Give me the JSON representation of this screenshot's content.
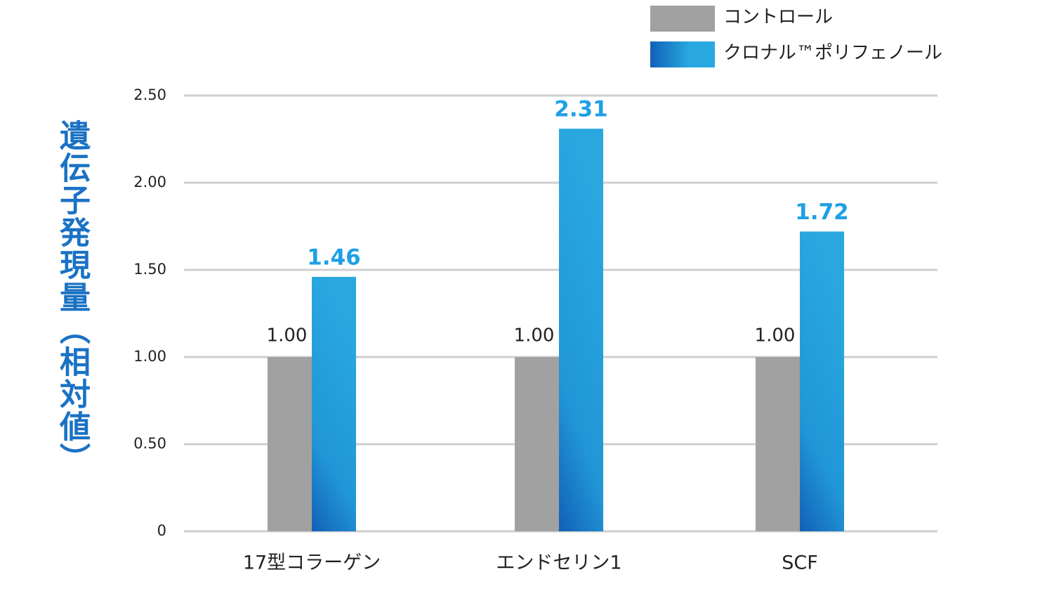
{
  "chart_data": {
    "type": "bar",
    "y_label": "遺伝子発現量（相対値）",
    "categories": [
      "17型コラーゲン",
      "エンドセリン1",
      "SCF"
    ],
    "series": [
      {
        "name": "コントロール",
        "color": "#a0a1a0",
        "values": [
          1.0,
          1.0,
          1.0
        ],
        "value_labels": [
          "1.00",
          "1.00",
          "1.00"
        ]
      },
      {
        "name": "クロナル™ポリフェノール",
        "color": "#29a8e0",
        "values": [
          1.46,
          2.31,
          1.72
        ]
      }
    ],
    "ylim": [
      0,
      2.5
    ],
    "yticks": [
      0,
      {
        "value": 0.5,
        "label": "0.50"
      },
      {
        "value": 1.0,
        "label": "1.00"
      },
      {
        "value": 1.5,
        "label": "1.50"
      },
      {
        "value": 2.0,
        "label": "2.00"
      },
      {
        "value": 2.5,
        "label": "2.50"
      }
    ],
    "grid": true,
    "legend": "top-right"
  }
}
